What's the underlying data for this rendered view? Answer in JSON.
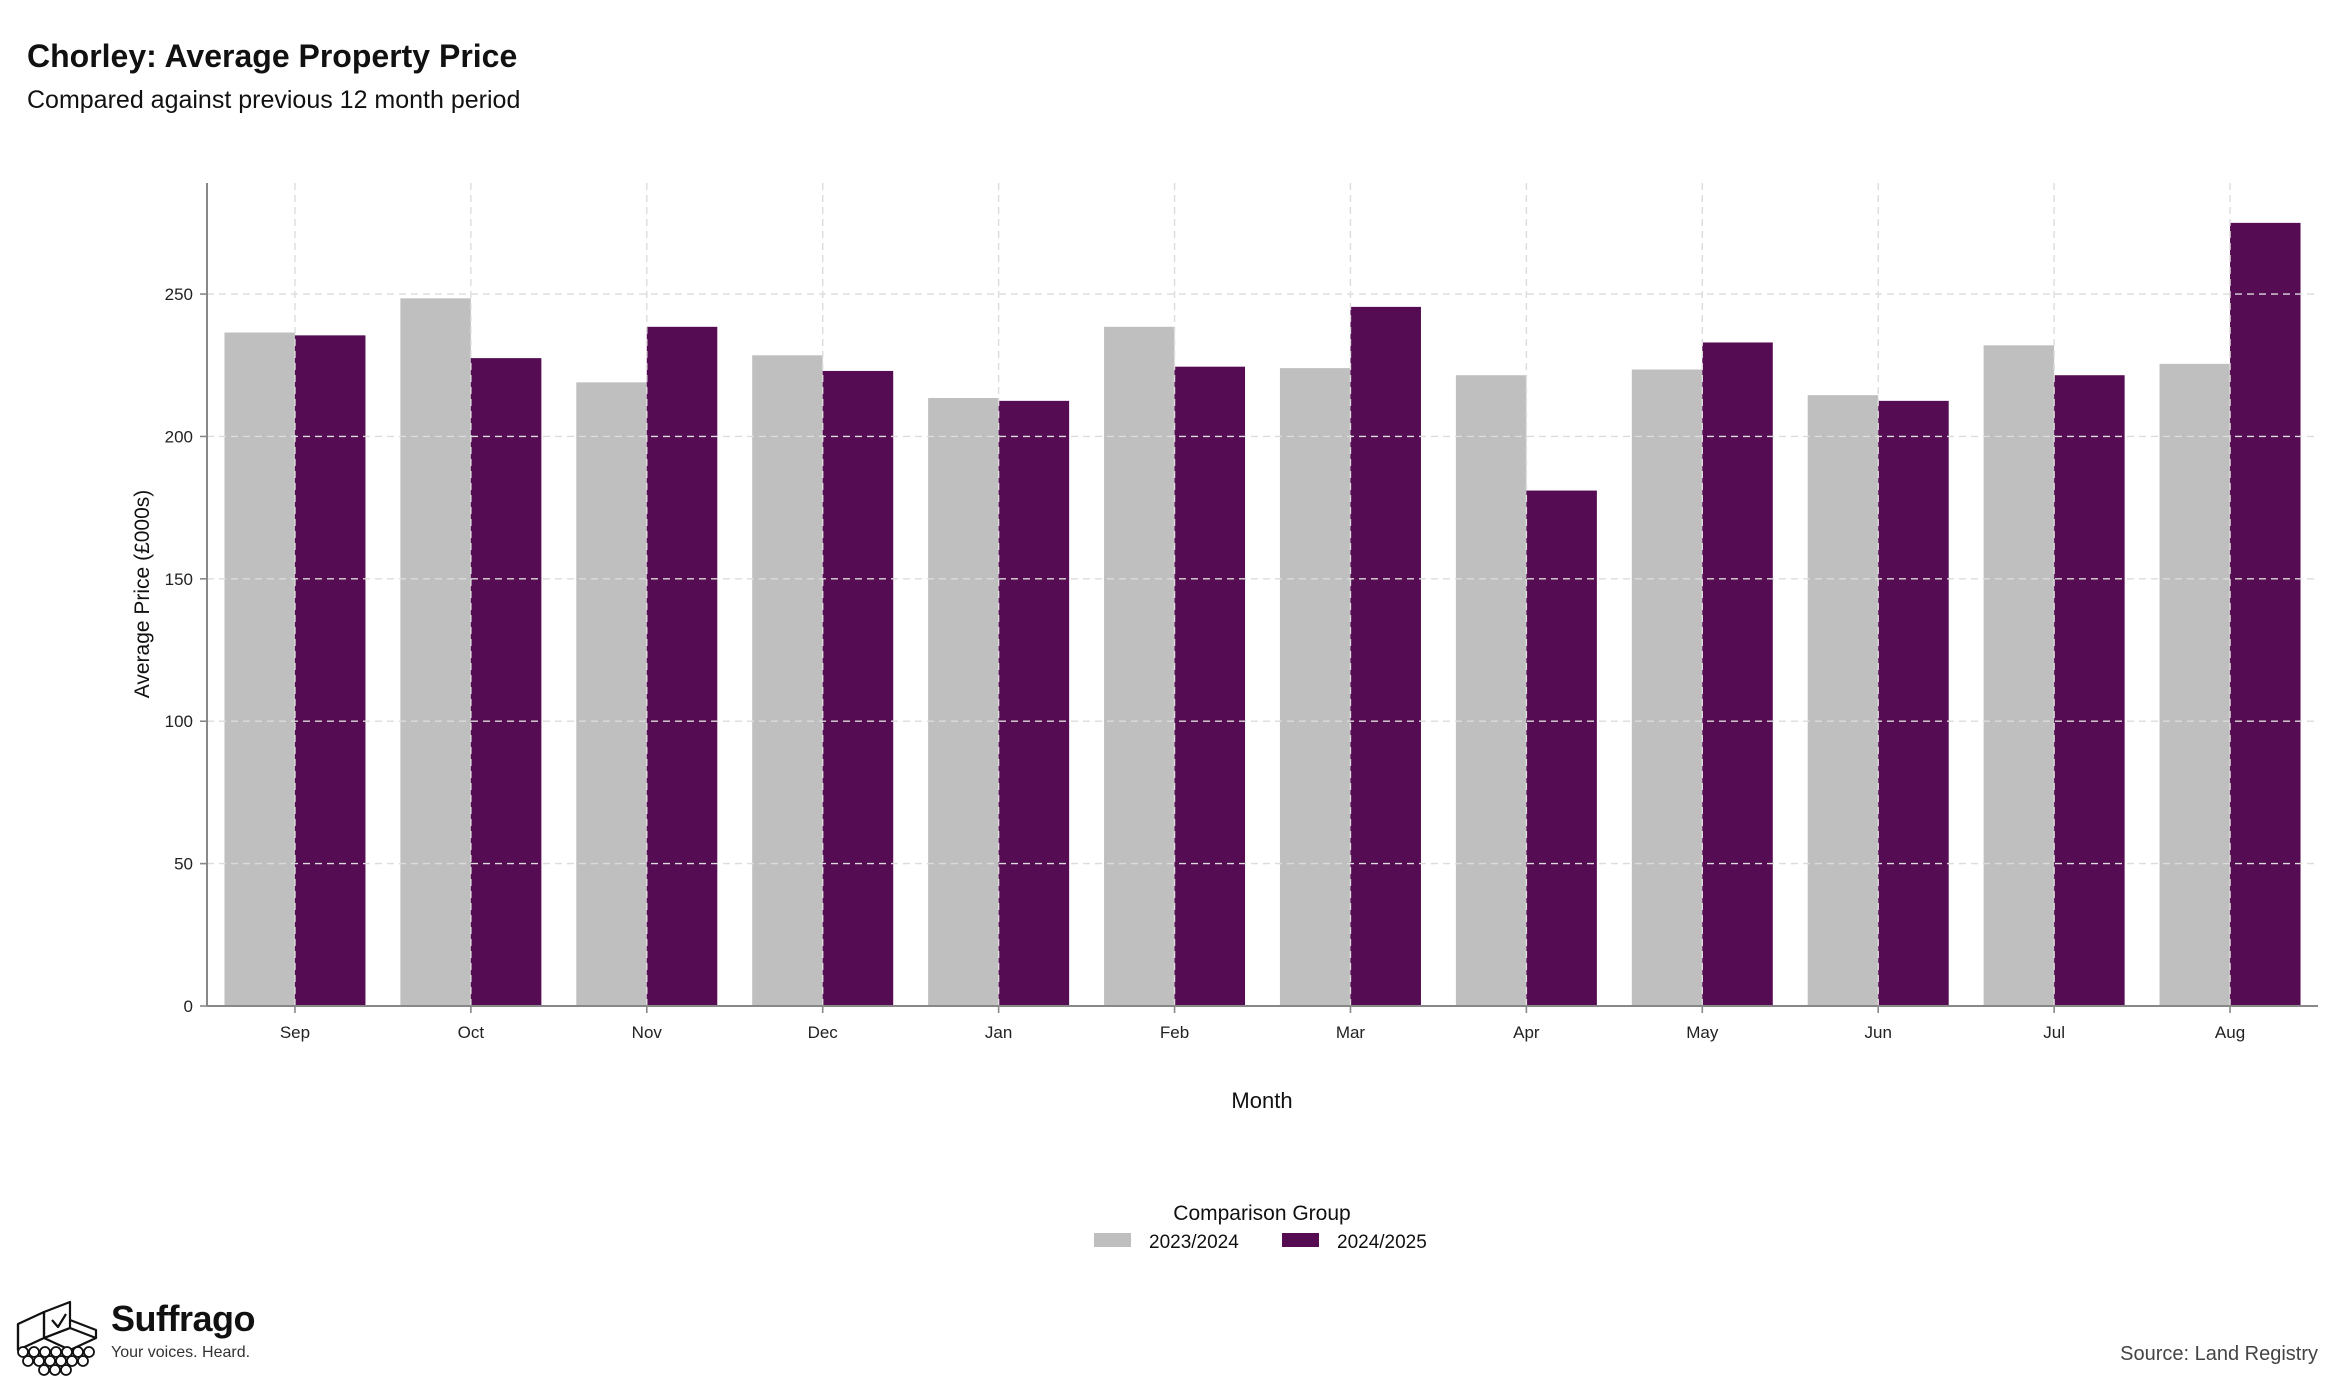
{
  "title": "Chorley: Average Property Price",
  "subtitle": "Compared against previous 12 month period",
  "source": "Source: Land Registry",
  "brand": {
    "name": "Suffrago",
    "tagline": "Your voices. Heard.",
    "logo_icon": "ballot-box-icon"
  },
  "colors": {
    "series_2023": "#bfbfbf",
    "series_2024": "#560c52",
    "grid": "#dcdcdc",
    "axis": "#888888"
  },
  "chart_data": {
    "type": "bar",
    "xlabel": "Month",
    "ylabel": "Average Price (£000s)",
    "ylim": [
      0,
      289
    ],
    "yticks": [
      0,
      50,
      100,
      150,
      200,
      250
    ],
    "grid": true,
    "categories": [
      "Sep",
      "Oct",
      "Nov",
      "Dec",
      "Jan",
      "Feb",
      "Mar",
      "Apr",
      "May",
      "Jun",
      "Jul",
      "Aug"
    ],
    "legend": {
      "title": "Comparison Group",
      "placement": "bottom-center"
    },
    "series": [
      {
        "name": "2023/2024",
        "values": [
          236.5,
          248.5,
          219,
          228.5,
          213.5,
          238.5,
          224,
          221.5,
          223.5,
          214.5,
          232,
          225.5
        ]
      },
      {
        "name": "2024/2025",
        "values": [
          235.5,
          227.5,
          238.5,
          223,
          212.5,
          224.5,
          245.5,
          181,
          233,
          212.5,
          221.5,
          275
        ]
      }
    ]
  }
}
